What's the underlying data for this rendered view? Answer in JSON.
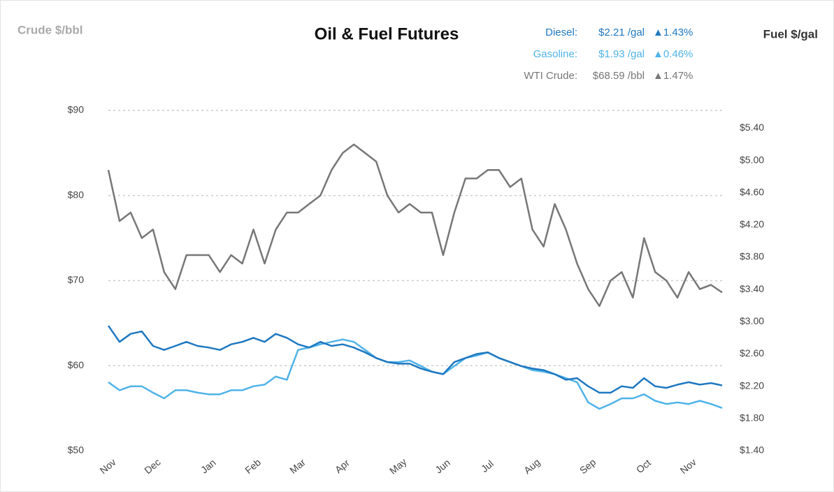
{
  "chart_data": {
    "type": "line",
    "title": "Oil & Fuel Futures",
    "y_label": "Crude $/bbl",
    "y2_label": "Fuel $/gal",
    "categories": [
      "Nov",
      null,
      null,
      null,
      "Dec",
      null,
      null,
      null,
      null,
      "Jan",
      null,
      null,
      null,
      "Feb",
      null,
      null,
      null,
      "Mar",
      null,
      null,
      null,
      "Apr",
      null,
      null,
      null,
      null,
      "May",
      null,
      null,
      null,
      "Jun",
      null,
      null,
      null,
      "Jul",
      null,
      null,
      null,
      "Aug",
      null,
      null,
      null,
      null,
      "Sep",
      null,
      null,
      null,
      null,
      "Oct",
      null,
      null,
      null,
      "Nov",
      null,
      null,
      null
    ],
    "ylim": [
      50,
      90
    ],
    "yticks": [
      {
        "value": 50,
        "label": "$50"
      },
      {
        "value": 60,
        "label": "$60"
      },
      {
        "value": 70,
        "label": "$70"
      },
      {
        "value": 80,
        "label": "$80"
      },
      {
        "value": 90,
        "label": "$90"
      }
    ],
    "y2lim": [
      1.4,
      5.62
    ],
    "y2ticks": [
      {
        "value": 1.4,
        "label": "$1.40"
      },
      {
        "value": 1.8,
        "label": "$1.80"
      },
      {
        "value": 2.2,
        "label": "$2.20"
      },
      {
        "value": 2.6,
        "label": "$2.60"
      },
      {
        "value": 3.0,
        "label": "$3.00"
      },
      {
        "value": 3.4,
        "label": "$3.40"
      },
      {
        "value": 3.8,
        "label": "$3.80"
      },
      {
        "value": 4.2,
        "label": "$4.20"
      },
      {
        "value": 4.6,
        "label": "$4.60"
      },
      {
        "value": 5.0,
        "label": "$5.00"
      },
      {
        "value": 5.4,
        "label": "$5.40"
      }
    ],
    "grid": true,
    "series": [
      {
        "name": "Diesel:",
        "price_label": "$2.21 /gal",
        "change_label": "▲1.43%",
        "color": "#1f78c1",
        "axis": "y2",
        "values": [
          2.95,
          2.75,
          2.85,
          2.88,
          2.7,
          2.65,
          2.7,
          2.75,
          2.7,
          2.68,
          2.65,
          2.72,
          2.75,
          2.8,
          2.75,
          2.85,
          2.8,
          2.72,
          2.68,
          2.75,
          2.7,
          2.72,
          2.68,
          2.62,
          2.55,
          2.5,
          2.48,
          2.48,
          2.42,
          2.38,
          2.35,
          2.5,
          2.55,
          2.6,
          2.62,
          2.55,
          2.5,
          2.45,
          2.42,
          2.4,
          2.35,
          2.28,
          2.3,
          2.2,
          2.12,
          2.12,
          2.2,
          2.18,
          2.3,
          2.2,
          2.18,
          2.22,
          2.25,
          2.22,
          2.24,
          2.21
        ]
      },
      {
        "name": "Gasoline:",
        "price_label": "$1.93 /gal",
        "change_label": "▲0.46%",
        "color": "#4fb3e8",
        "axis": "y2",
        "values": [
          2.25,
          2.15,
          2.2,
          2.2,
          2.12,
          2.05,
          2.15,
          2.15,
          2.12,
          2.1,
          2.1,
          2.15,
          2.15,
          2.2,
          2.22,
          2.32,
          2.28,
          2.65,
          2.68,
          2.72,
          2.75,
          2.78,
          2.75,
          2.65,
          2.55,
          2.5,
          2.5,
          2.52,
          2.45,
          2.38,
          2.35,
          2.45,
          2.55,
          2.58,
          2.62,
          2.55,
          2.5,
          2.45,
          2.4,
          2.38,
          2.35,
          2.3,
          2.25,
          2.0,
          1.92,
          1.98,
          2.05,
          2.05,
          2.1,
          2.02,
          1.98,
          2.0,
          1.98,
          2.02,
          1.98,
          1.93
        ]
      },
      {
        "name": "WTI Crude:",
        "price_label": "$68.59 /bbl",
        "change_label": "▲1.47%",
        "color": "#777777",
        "axis": "y",
        "values": [
          83,
          77,
          78,
          75,
          76,
          71,
          69,
          73,
          73,
          73,
          71,
          73,
          72,
          76,
          72,
          76,
          78,
          78,
          79,
          80,
          83,
          85,
          86,
          85,
          84,
          80,
          78,
          79,
          78,
          78,
          73,
          78,
          82,
          82,
          83,
          83,
          81,
          82,
          76,
          74,
          79,
          76,
          72,
          69,
          67,
          70,
          71,
          68,
          75,
          71,
          70,
          68,
          71,
          69,
          69.5,
          68.6
        ]
      }
    ]
  }
}
